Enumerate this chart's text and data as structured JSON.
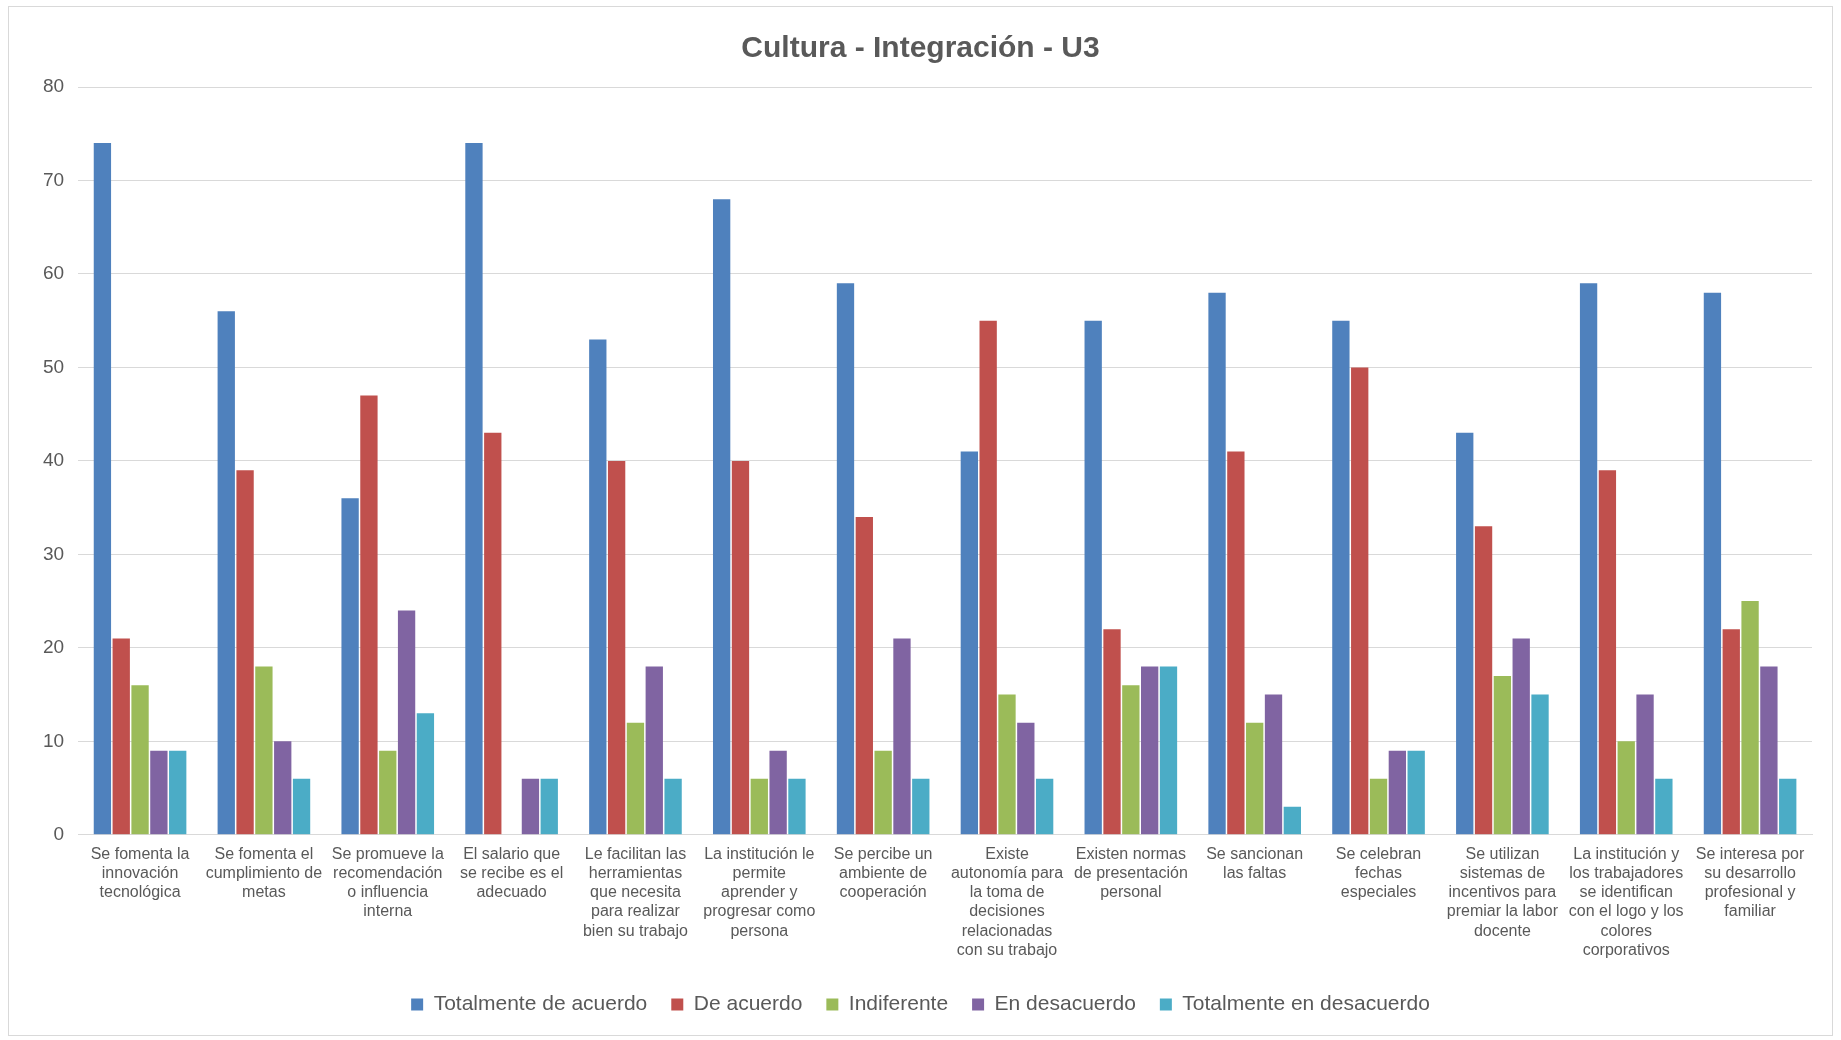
{
  "chart_data": {
    "type": "bar",
    "title": "Cultura - Integración - U3",
    "categories": [
      "Se fomenta la innovación tecnológica",
      "Se fomenta el cumplimiento de metas",
      "Se promueve la recomendación o influencia interna",
      "El salario que se recibe es el adecuado",
      "Le facilitan las herramientas que necesita para realizar bien su trabajo",
      "La institución le permite aprender y progresar como persona",
      "Se percibe un ambiente de cooperación",
      "Existe autonomía para la toma de decisiones relacionadas con su trabajo",
      "Existen normas de presentación personal",
      "Se sancionan las faltas",
      "Se celebran fechas especiales",
      "Se utilizan sistemas de incentivos para premiar la labor docente",
      "La institución y los trabajadores se identifican con el logo y los colores corporativos",
      "Se interesa por su desarrollo profesional y familiar"
    ],
    "series": [
      {
        "name": "Totalmente de acuerdo",
        "color": "#4f81bd",
        "values": [
          74,
          56,
          36,
          74,
          53,
          68,
          59,
          41,
          55,
          58,
          55,
          43,
          59,
          58
        ]
      },
      {
        "name": "De acuerdo",
        "color": "#c0504d",
        "values": [
          21,
          39,
          47,
          43,
          40,
          40,
          34,
          55,
          22,
          41,
          50,
          33,
          39,
          22
        ]
      },
      {
        "name": "Indiferente",
        "color": "#9bbb59",
        "values": [
          16,
          18,
          9,
          0,
          12,
          6,
          9,
          15,
          16,
          12,
          6,
          17,
          10,
          25
        ]
      },
      {
        "name": "En desacuerdo",
        "color": "#8064a2",
        "values": [
          9,
          10,
          24,
          6,
          18,
          9,
          21,
          12,
          18,
          15,
          9,
          21,
          15,
          18
        ]
      },
      {
        "name": "Totalmente en desacuerdo",
        "color": "#4bacc6",
        "values": [
          9,
          6,
          13,
          6,
          6,
          6,
          6,
          6,
          18,
          3,
          9,
          15,
          6,
          6
        ]
      }
    ],
    "ylim": [
      0,
      80
    ],
    "yticks": [
      0,
      10,
      20,
      30,
      40,
      50,
      60,
      70,
      80
    ],
    "grid": "y",
    "legend": "bottom"
  }
}
